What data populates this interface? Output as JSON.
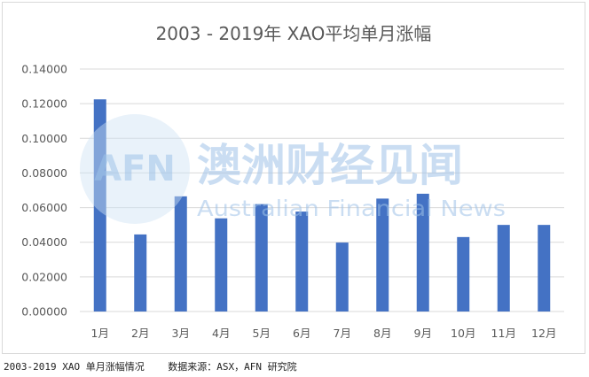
{
  "chart_data": {
    "type": "bar",
    "title": "2003 - 2019年 XAO平均单月涨幅",
    "categories": [
      "1月",
      "2月",
      "3月",
      "4月",
      "5月",
      "6月",
      "7月",
      "8月",
      "9月",
      "10月",
      "11月",
      "12月"
    ],
    "values": [
      0.1225,
      0.0445,
      0.0665,
      0.0538,
      0.062,
      0.0577,
      0.0398,
      0.0652,
      0.068,
      0.043,
      0.05,
      0.05
    ],
    "ylim": [
      0,
      0.14
    ],
    "yticks": [
      0,
      0.02,
      0.04,
      0.06,
      0.08,
      0.1,
      0.12,
      0.14
    ],
    "ytick_labels": [
      "0.00000",
      "0.02000",
      "0.04000",
      "0.06000",
      "0.08000",
      "0.10000",
      "0.12000",
      "0.14000"
    ],
    "grid": true,
    "bar_color": "#4472c4"
  },
  "watermark": {
    "logo": "AFN",
    "cn": "澳洲财经见闻",
    "en": "Australian Financial News"
  },
  "caption": "2003-2019 XAO 单月涨幅情况    数据来源：ASX，AFN 研究院"
}
